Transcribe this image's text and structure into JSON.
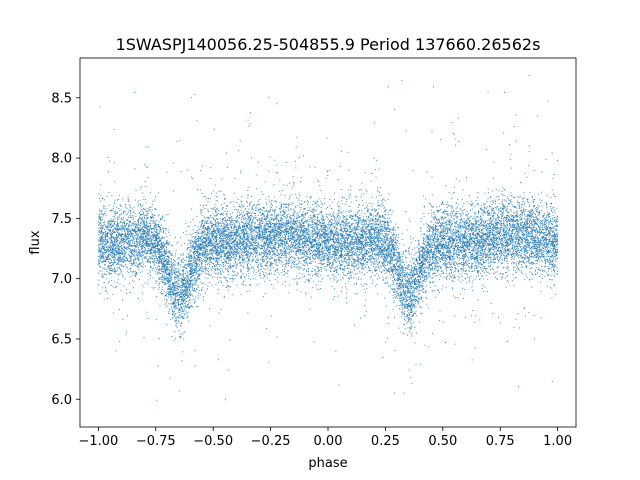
{
  "chart_data": {
    "type": "scatter",
    "title": "1SWASPJ140056.25-504855.9 Period 137660.26562s",
    "xlabel": "phase",
    "ylabel": "flux",
    "xlim": [
      -1.08,
      1.08
    ],
    "ylim": [
      5.77,
      8.83
    ],
    "x_ticks": [
      -1.0,
      -0.75,
      -0.5,
      -0.25,
      0.0,
      0.25,
      0.5,
      0.75,
      1.0
    ],
    "x_tick_labels": [
      "−1.00",
      "−0.75",
      "−0.50",
      "−0.25",
      "0.00",
      "0.25",
      "0.50",
      "0.75",
      "1.00"
    ],
    "y_ticks": [
      6.0,
      6.5,
      7.0,
      7.5,
      8.0,
      8.5
    ],
    "y_tick_labels": [
      "6.0",
      "6.5",
      "7.0",
      "7.5",
      "8.0",
      "8.5"
    ],
    "grid": false,
    "point_color": "#1f77b4",
    "series": [
      {
        "x_range": [
          -1.0,
          1.0
        ],
        "baseline_flux": 7.33,
        "scatter_sigma": 0.15,
        "primary_eclipse": {
          "phase": -0.65,
          "min_flux": 6.85
        },
        "secondary_eclipse": {
          "phase": 0.35,
          "min_flux": 6.85
        },
        "max_flux": 8.7,
        "min_flux": 5.95
      }
    ]
  }
}
